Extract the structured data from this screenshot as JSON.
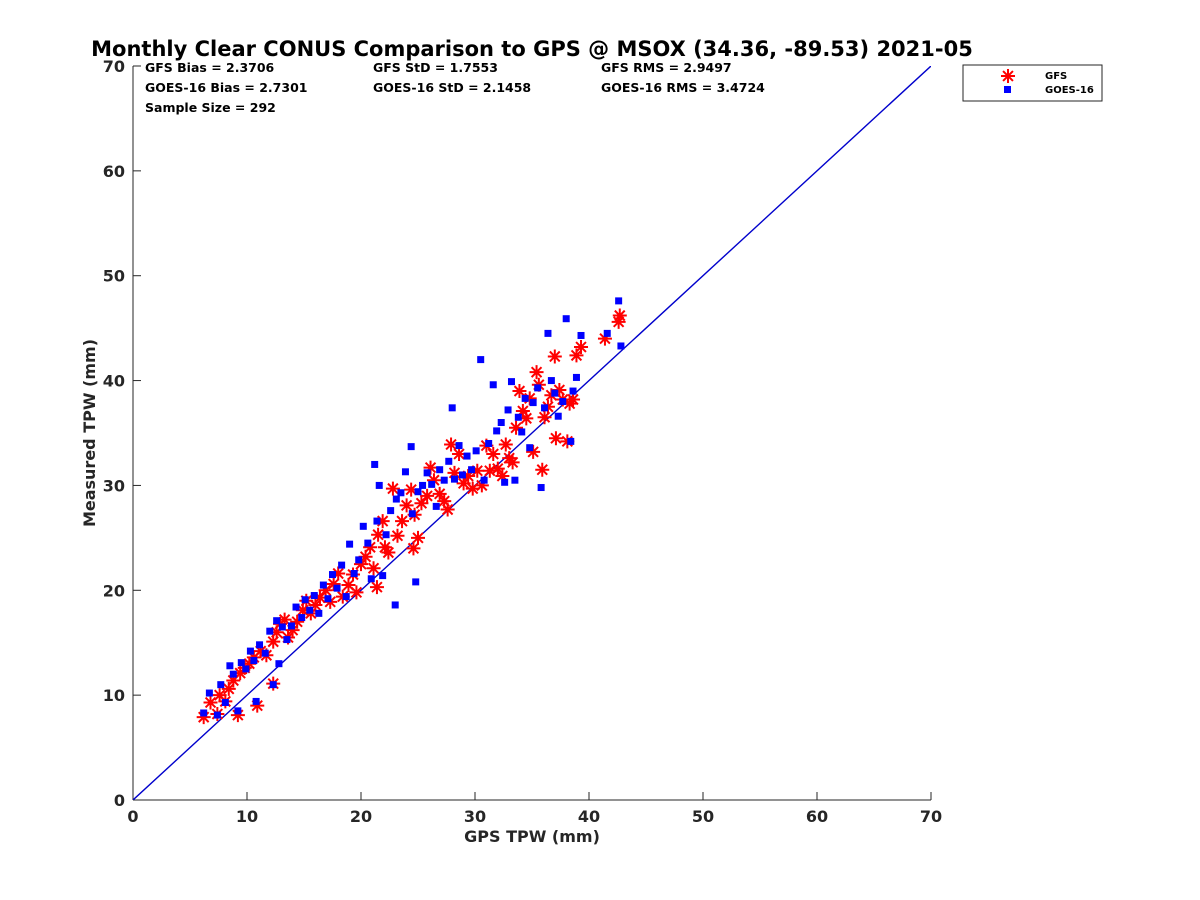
{
  "chart_data": {
    "type": "scatter",
    "title": "Monthly Clear CONUS Comparison to GPS @ MSOX (34.36, -89.53) 2021-05",
    "xlabel": "GPS TPW (mm)",
    "ylabel": "Measured TPW (mm)",
    "xlim": [
      0,
      70
    ],
    "ylim": [
      0,
      70
    ],
    "xticks": [
      "0",
      "10",
      "20",
      "30",
      "40",
      "50",
      "60",
      "70"
    ],
    "yticks": [
      "0",
      "10",
      "20",
      "30",
      "40",
      "50",
      "60",
      "70"
    ],
    "grid": false,
    "legend_position": "top-right outside",
    "colors": {
      "gfs": "#ff0000",
      "goes16": "#0000ff",
      "reference_line": "#0000cc"
    },
    "stats": {
      "gfs_bias": "GFS Bias = 2.3706",
      "gfs_std": "GFS StD = 1.7553",
      "gfs_rms": "GFS RMS = 2.9497",
      "goes_bias": "GOES-16 Bias = 2.7301",
      "goes_std": "GOES-16 StD = 2.1458",
      "goes_rms": "GOES-16 RMS = 3.4724",
      "sample_size": "Sample Size = 292"
    },
    "reference_line": {
      "x": [
        0,
        70
      ],
      "y": [
        0,
        70
      ]
    },
    "series": [
      {
        "name": "GFS",
        "marker": "asterisk",
        "points": [
          [
            6.2,
            7.9
          ],
          [
            6.8,
            9.3
          ],
          [
            7.4,
            8.2
          ],
          [
            7.6,
            10.0
          ],
          [
            8.1,
            9.4
          ],
          [
            8.4,
            10.6
          ],
          [
            8.8,
            11.4
          ],
          [
            9.2,
            8.1
          ],
          [
            9.4,
            12.1
          ],
          [
            9.8,
            12.6
          ],
          [
            10.2,
            13.0
          ],
          [
            10.6,
            13.6
          ],
          [
            10.9,
            9.0
          ],
          [
            11.2,
            14.2
          ],
          [
            11.7,
            13.8
          ],
          [
            12.3,
            11.1
          ],
          [
            12.3,
            15.1
          ],
          [
            12.6,
            16.0
          ],
          [
            12.9,
            16.8
          ],
          [
            13.3,
            17.2
          ],
          [
            13.6,
            15.5
          ],
          [
            14.0,
            16.2
          ],
          [
            14.4,
            17.0
          ],
          [
            14.9,
            18.1
          ],
          [
            15.2,
            19.0
          ],
          [
            15.6,
            17.8
          ],
          [
            16.0,
            18.6
          ],
          [
            16.4,
            19.3
          ],
          [
            16.9,
            20.0
          ],
          [
            17.3,
            18.9
          ],
          [
            17.6,
            20.6
          ],
          [
            18.0,
            21.6
          ],
          [
            18.4,
            19.4
          ],
          [
            18.9,
            20.5
          ],
          [
            19.3,
            21.5
          ],
          [
            19.6,
            19.8
          ],
          [
            20.0,
            22.5
          ],
          [
            20.4,
            23.2
          ],
          [
            20.8,
            24.1
          ],
          [
            21.1,
            22.1
          ],
          [
            21.4,
            20.3
          ],
          [
            21.5,
            25.3
          ],
          [
            21.9,
            26.6
          ],
          [
            22.1,
            24.1
          ],
          [
            22.4,
            23.6
          ],
          [
            22.8,
            29.7
          ],
          [
            23.2,
            25.2
          ],
          [
            23.6,
            26.6
          ],
          [
            24.0,
            28.1
          ],
          [
            24.4,
            29.6
          ],
          [
            24.6,
            24.0
          ],
          [
            24.7,
            27.2
          ],
          [
            25.0,
            25.0
          ],
          [
            25.3,
            28.3
          ],
          [
            25.8,
            29.0
          ],
          [
            26.1,
            31.7
          ],
          [
            26.4,
            30.5
          ],
          [
            26.9,
            29.2
          ],
          [
            27.3,
            28.5
          ],
          [
            27.6,
            27.7
          ],
          [
            27.9,
            33.9
          ],
          [
            28.2,
            31.2
          ],
          [
            28.6,
            33.0
          ],
          [
            29.0,
            30.2
          ],
          [
            29.4,
            30.9
          ],
          [
            29.8,
            29.7
          ],
          [
            30.2,
            31.4
          ],
          [
            30.6,
            30.0
          ],
          [
            31.0,
            33.8
          ],
          [
            31.3,
            31.4
          ],
          [
            31.6,
            33.0
          ],
          [
            32.0,
            31.6
          ],
          [
            32.4,
            30.9
          ],
          [
            32.7,
            33.9
          ],
          [
            33.0,
            32.6
          ],
          [
            33.3,
            32.2
          ],
          [
            33.6,
            35.5
          ],
          [
            33.9,
            39.0
          ],
          [
            34.2,
            37.1
          ],
          [
            34.5,
            36.4
          ],
          [
            34.8,
            38.3
          ],
          [
            35.1,
            33.2
          ],
          [
            35.4,
            40.8
          ],
          [
            35.6,
            39.6
          ],
          [
            35.9,
            31.5
          ],
          [
            36.1,
            36.5
          ],
          [
            36.4,
            37.5
          ],
          [
            36.7,
            38.6
          ],
          [
            37.0,
            42.3
          ],
          [
            37.1,
            34.5
          ],
          [
            37.4,
            39.1
          ],
          [
            37.7,
            38.2
          ],
          [
            38.1,
            34.2
          ],
          [
            38.3,
            37.8
          ],
          [
            38.6,
            38.2
          ],
          [
            38.9,
            42.4
          ],
          [
            39.3,
            43.2
          ],
          [
            41.4,
            44.0
          ],
          [
            42.6,
            45.6
          ],
          [
            42.7,
            46.2
          ]
        ]
      },
      {
        "name": "GOES-16",
        "marker": "square",
        "points": [
          [
            6.2,
            8.3
          ],
          [
            6.7,
            10.2
          ],
          [
            7.4,
            8.1
          ],
          [
            7.7,
            11.0
          ],
          [
            8.1,
            9.3
          ],
          [
            8.5,
            12.8
          ],
          [
            8.8,
            12.0
          ],
          [
            9.2,
            8.5
          ],
          [
            9.5,
            13.1
          ],
          [
            9.9,
            12.5
          ],
          [
            10.3,
            14.2
          ],
          [
            10.6,
            13.3
          ],
          [
            10.8,
            9.4
          ],
          [
            11.1,
            14.8
          ],
          [
            11.6,
            14.0
          ],
          [
            12.0,
            16.1
          ],
          [
            12.3,
            11.0
          ],
          [
            12.6,
            17.1
          ],
          [
            12.8,
            13.0
          ],
          [
            13.1,
            16.5
          ],
          [
            13.5,
            15.3
          ],
          [
            13.9,
            16.6
          ],
          [
            14.3,
            18.4
          ],
          [
            14.8,
            17.4
          ],
          [
            15.1,
            19.1
          ],
          [
            15.5,
            18.1
          ],
          [
            15.9,
            19.5
          ],
          [
            16.3,
            17.8
          ],
          [
            16.7,
            20.5
          ],
          [
            17.1,
            19.2
          ],
          [
            17.5,
            21.5
          ],
          [
            17.9,
            20.2
          ],
          [
            18.3,
            22.4
          ],
          [
            18.7,
            19.4
          ],
          [
            19.0,
            24.4
          ],
          [
            19.4,
            21.6
          ],
          [
            19.8,
            22.9
          ],
          [
            20.2,
            26.1
          ],
          [
            20.6,
            24.5
          ],
          [
            20.9,
            21.1
          ],
          [
            21.2,
            32.0
          ],
          [
            21.4,
            26.6
          ],
          [
            21.6,
            30.0
          ],
          [
            21.9,
            21.4
          ],
          [
            22.2,
            25.3
          ],
          [
            22.6,
            27.6
          ],
          [
            23.0,
            18.6
          ],
          [
            23.1,
            28.7
          ],
          [
            23.5,
            29.3
          ],
          [
            23.9,
            31.3
          ],
          [
            24.4,
            33.7
          ],
          [
            24.5,
            27.3
          ],
          [
            24.8,
            20.8
          ],
          [
            25.0,
            29.4
          ],
          [
            25.4,
            30.0
          ],
          [
            25.8,
            31.2
          ],
          [
            26.2,
            30.1
          ],
          [
            26.6,
            28.0
          ],
          [
            26.9,
            31.5
          ],
          [
            27.3,
            30.5
          ],
          [
            27.7,
            32.3
          ],
          [
            28.0,
            37.4
          ],
          [
            28.2,
            30.6
          ],
          [
            28.6,
            33.8
          ],
          [
            28.9,
            31.0
          ],
          [
            29.3,
            32.8
          ],
          [
            29.7,
            31.5
          ],
          [
            30.1,
            33.3
          ],
          [
            30.5,
            42.0
          ],
          [
            30.8,
            30.5
          ],
          [
            31.2,
            34.0
          ],
          [
            31.6,
            39.6
          ],
          [
            31.9,
            35.2
          ],
          [
            32.3,
            36.0
          ],
          [
            32.6,
            30.3
          ],
          [
            32.9,
            37.2
          ],
          [
            33.2,
            39.9
          ],
          [
            33.5,
            30.5
          ],
          [
            33.8,
            36.5
          ],
          [
            34.1,
            35.1
          ],
          [
            34.4,
            38.3
          ],
          [
            34.8,
            33.6
          ],
          [
            35.1,
            37.9
          ],
          [
            35.5,
            39.3
          ],
          [
            35.8,
            29.8
          ],
          [
            36.1,
            37.4
          ],
          [
            36.4,
            44.5
          ],
          [
            36.7,
            40.0
          ],
          [
            37.0,
            38.8
          ],
          [
            37.3,
            36.6
          ],
          [
            37.7,
            38.0
          ],
          [
            38.0,
            45.9
          ],
          [
            38.4,
            34.2
          ],
          [
            38.6,
            39.0
          ],
          [
            38.9,
            40.3
          ],
          [
            39.3,
            44.3
          ],
          [
            41.6,
            44.5
          ],
          [
            42.6,
            47.6
          ],
          [
            42.8,
            43.3
          ]
        ]
      }
    ]
  }
}
